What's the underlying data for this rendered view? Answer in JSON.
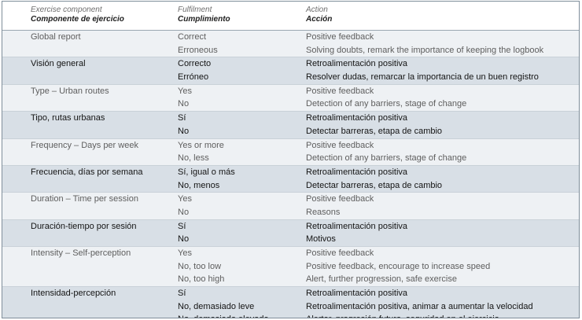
{
  "header": {
    "component_en": "Exercise component",
    "component_es": "Componente de ejercicio",
    "fulfilment_en": "Fulfilment",
    "fulfilment_es": "Cumplimiento",
    "action_en": "Action",
    "action_es": "Acción"
  },
  "groups": [
    {
      "lang": "en",
      "component": "Global report",
      "rows": [
        {
          "fulfilment": "Correct",
          "action": "Positive feedback"
        },
        {
          "fulfilment": "Erroneous",
          "action": "Solving doubts, remark the importance of keeping the logbook"
        }
      ]
    },
    {
      "lang": "es",
      "component": "Visión general",
      "rows": [
        {
          "fulfilment": "Correcto",
          "action": "Retroalimentación positiva"
        },
        {
          "fulfilment": "Erróneo",
          "action": "Resolver dudas, remarcar la importancia de un buen registro"
        }
      ]
    },
    {
      "lang": "en",
      "component": "Type – Urban routes",
      "rows": [
        {
          "fulfilment": "Yes",
          "action": "Positive feedback"
        },
        {
          "fulfilment": "No",
          "action": "Detection of any barriers, stage of change"
        }
      ]
    },
    {
      "lang": "es",
      "component": "Tipo, rutas urbanas",
      "rows": [
        {
          "fulfilment": "Sí",
          "action": "Retroalimentación positiva"
        },
        {
          "fulfilment": "No",
          "action": "Detectar barreras, etapa de cambio"
        }
      ]
    },
    {
      "lang": "en",
      "component": "Frequency – Days per week",
      "rows": [
        {
          "fulfilment": "Yes or more",
          "action": "Positive feedback"
        },
        {
          "fulfilment": "No, less",
          "action": "Detection of any barriers, stage of change"
        }
      ]
    },
    {
      "lang": "es",
      "component": "Frecuencia, días por semana",
      "rows": [
        {
          "fulfilment": "Sí, igual o más",
          "action": "Retroalimentación positiva"
        },
        {
          "fulfilment": "No, menos",
          "action": "Detectar barreras, etapa de cambio"
        }
      ]
    },
    {
      "lang": "en",
      "component": "Duration – Time per session",
      "rows": [
        {
          "fulfilment": "Yes",
          "action": "Positive feedback"
        },
        {
          "fulfilment": "No",
          "action": "Reasons"
        }
      ]
    },
    {
      "lang": "es",
      "component": "Duración-tiempo por sesión",
      "rows": [
        {
          "fulfilment": "Sí",
          "action": "Retroalimentación positiva"
        },
        {
          "fulfilment": "No",
          "action": "Motivos"
        }
      ]
    },
    {
      "lang": "en",
      "component": "Intensity – Self-perception",
      "rows": [
        {
          "fulfilment": "Yes",
          "action": "Positive feedback"
        },
        {
          "fulfilment": "No, too low",
          "action": "Positive feedback, encourage to increase speed"
        },
        {
          "fulfilment": "No, too high",
          "action": "Alert, further progression, safe exercise"
        }
      ]
    },
    {
      "lang": "es",
      "component": "Intensidad-percepción",
      "rows": [
        {
          "fulfilment": "Sí",
          "action": "Retroalimentación positiva"
        },
        {
          "fulfilment": "No, demasiado leve",
          "action": "Retroalimentación positiva, animar a aumentar la velocidad"
        },
        {
          "fulfilment": "No, demasiado elevada",
          "action": "Alertar, progresión futura, seguridad en el ejercicio"
        }
      ]
    }
  ]
}
